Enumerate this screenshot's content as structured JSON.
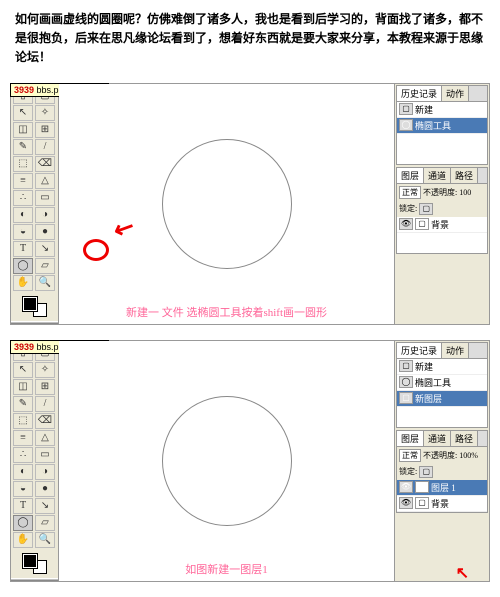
{
  "intro": "如何画画虚线的圆圈呢？仿佛难倒了诸多人，我也是看到后学习的，背面找了诸多，都不是很抱负，后来在思凡缘论坛看到了，想着好东西就是要大家来分享，本教程来源于思缘论坛！",
  "watermark": {
    "num": "3939",
    "site": "bbs.photops.com"
  },
  "shot1": {
    "caption": "新建一 文件 选椭圆工具按着shift画一圆形",
    "history": {
      "tab1": "历史记录",
      "tab2": "动作",
      "item1": "新建",
      "item2": "椭圆工具"
    },
    "layers": {
      "tab1": "图层",
      "tab2": "通道",
      "tab3": "路径",
      "mode": "正常",
      "opacity": "不透明度: 100",
      "lock": "锁定:",
      "item": "背景"
    }
  },
  "shot2": {
    "caption": "如图新建一图层1",
    "history": {
      "tab1": "历史记录",
      "tab2": "动作",
      "item1": "新建",
      "item2": "椭圆工具",
      "item3": "新图层"
    },
    "layers": {
      "tab1": "图层",
      "tab2": "通道",
      "tab3": "路径",
      "mode": "正常",
      "opacity": "不透明度: 100%",
      "lock": "锁定:",
      "item1": "图层 1",
      "item2": "背景"
    }
  },
  "tools": [
    "▯",
    "▢",
    "↖",
    "✧",
    "◫",
    "⊞",
    "✎",
    "/",
    "⬚",
    "⌫",
    "≡",
    "△",
    "∴",
    "▭",
    "◐",
    "◑",
    "◒",
    "●",
    "T",
    "↘",
    "◯",
    "▱",
    "✋",
    "🔍"
  ]
}
